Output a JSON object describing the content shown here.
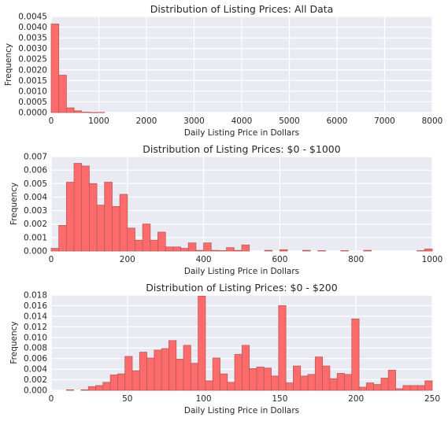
{
  "chart_data": [
    {
      "type": "bar",
      "title": "Distribution of Listing Prices: All Data",
      "xlabel": "Daily Listing Price in Dollars",
      "ylabel": "Frequency",
      "xlim": [
        0,
        8000
      ],
      "ylim": [
        0,
        0.0045
      ],
      "xticks": [
        "0",
        "1000",
        "2000",
        "3000",
        "4000",
        "5000",
        "6000",
        "7000",
        "8000"
      ],
      "yticks": [
        "0.0000",
        "0.0005",
        "0.0010",
        "0.0015",
        "0.0020",
        "0.0025",
        "0.0030",
        "0.0035",
        "0.0040",
        "0.0045"
      ],
      "bar_color": "#ff6b6b",
      "grid": true,
      "bin_edges": [
        0,
        160,
        320,
        480,
        640,
        800,
        960,
        1120,
        1280,
        1440,
        1600,
        1760,
        1920,
        2080,
        2240,
        2400,
        2560,
        2720,
        2880,
        3040,
        3200,
        3360,
        3520,
        3680,
        3840,
        4000,
        4160,
        4320,
        4480,
        4640,
        4800,
        4960,
        5120,
        5280,
        5440,
        5600,
        5760,
        5920,
        6080,
        6240,
        6400,
        6560,
        6720,
        6880,
        7040,
        7200,
        7360,
        7520,
        7680,
        7840,
        8000
      ],
      "values": [
        0.00415,
        0.00175,
        0.00022,
        8e-05,
        2e-05,
        4e-06,
        1e-05,
        0,
        0,
        0,
        0,
        0,
        0,
        0,
        0,
        0,
        0,
        0,
        0,
        0,
        0,
        0,
        0,
        0,
        0,
        0,
        0,
        0,
        0,
        0,
        0,
        0,
        0,
        0,
        0,
        0,
        0,
        0,
        0,
        0,
        0,
        0,
        0,
        0,
        0,
        0,
        0,
        0,
        0,
        0
      ]
    },
    {
      "type": "bar",
      "title": "Distribution of Listing Prices: $0 - $1000",
      "xlabel": "Daily Listing Price in Dollars",
      "ylabel": "Frequency",
      "xlim": [
        0,
        1000
      ],
      "ylim": [
        0,
        0.007
      ],
      "xticks": [
        "0",
        "200",
        "400",
        "600",
        "800",
        "1000"
      ],
      "yticks": [
        "0.000",
        "0.001",
        "0.002",
        "0.003",
        "0.004",
        "0.005",
        "0.006",
        "0.007"
      ],
      "bar_color": "#ff6b6b",
      "grid": true,
      "bin_edges": [
        0,
        20,
        40,
        60,
        80,
        100,
        120,
        140,
        160,
        180,
        200,
        220,
        240,
        260,
        280,
        300,
        320,
        340,
        360,
        380,
        400,
        420,
        440,
        460,
        480,
        500,
        520,
        540,
        560,
        580,
        600,
        620,
        640,
        660,
        680,
        700,
        720,
        740,
        760,
        780,
        800,
        820,
        840,
        860,
        880,
        900,
        920,
        940,
        960,
        980,
        1000
      ],
      "values": [
        0.0002,
        0.0019,
        0.0051,
        0.0065,
        0.0063,
        0.005,
        0.0034,
        0.0051,
        0.0033,
        0.0042,
        0.0017,
        0.0008,
        0.002,
        0.0008,
        0.0014,
        0.0003,
        0.0003,
        0.0002,
        0.0006,
        5e-05,
        0.0006,
        5e-05,
        3e-05,
        0.00025,
        5e-05,
        0.00045,
        0,
        0,
        5e-05,
        0,
        0.0001,
        0,
        0,
        5e-05,
        0,
        3e-05,
        0,
        0,
        3e-05,
        0,
        0,
        5e-05,
        0,
        0,
        0,
        0,
        0,
        0,
        3e-05,
        0.00015
      ]
    },
    {
      "type": "bar",
      "title": "Distribution of Listing Prices: $0 - $200",
      "xlabel": "Daily Listing Price in Dollars",
      "ylabel": "Frequency",
      "xlim": [
        0,
        250
      ],
      "ylim": [
        0,
        0.018
      ],
      "xticks": [
        "0",
        "50",
        "100",
        "150",
        "200",
        "250"
      ],
      "yticks": [
        "0.000",
        "0.002",
        "0.004",
        "0.006",
        "0.008",
        "0.010",
        "0.012",
        "0.014",
        "0.016",
        "0.018"
      ],
      "bar_color": "#ff6b6b",
      "grid": true,
      "bin_edges": [
        10,
        14.8,
        19.6,
        24.4,
        29.2,
        34,
        38.8,
        43.6,
        48.4,
        53.2,
        58,
        62.8,
        67.6,
        72.4,
        77.2,
        82,
        86.8,
        91.6,
        96.4,
        101.2,
        106,
        110.8,
        115.6,
        120.4,
        125.2,
        130,
        134.8,
        139.6,
        144.4,
        149.2,
        154,
        158.8,
        163.6,
        168.4,
        173.2,
        178,
        182.8,
        187.6,
        192.4,
        197.2,
        202,
        206.8,
        211.6,
        216.4,
        221.2,
        226,
        230.8,
        235.6,
        240.4,
        245.2,
        250
      ],
      "values": [
        0.0001,
        0,
        0.0001,
        0.0007,
        0.0009,
        0.0015,
        0.0029,
        0.0031,
        0.0064,
        0.0037,
        0.0072,
        0.0061,
        0.0076,
        0.0079,
        0.0094,
        0.0059,
        0.0085,
        0.0051,
        0.0178,
        0.0018,
        0.0061,
        0.0031,
        0.0015,
        0.0068,
        0.0085,
        0.0041,
        0.0044,
        0.0042,
        0.0027,
        0.016,
        0.0014,
        0.0046,
        0.0027,
        0.003,
        0.0063,
        0.0046,
        0.0022,
        0.0032,
        0.003,
        0.0135,
        0.0006,
        0.0014,
        0.0011,
        0.0023,
        0.0038,
        0.0003,
        0.0009,
        0.0009,
        0.0009,
        0.0018
      ]
    }
  ]
}
